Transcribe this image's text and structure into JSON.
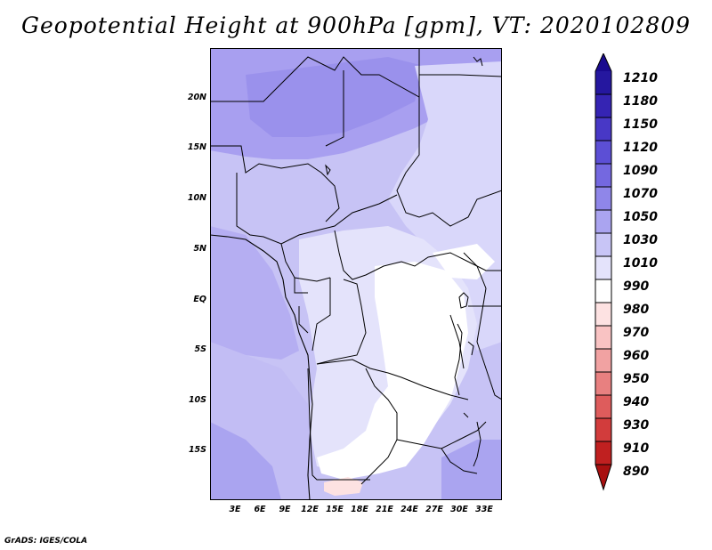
{
  "title": "Geopotential Height at 900hPa [gpm], VT: 2020102809",
  "footer": "GrADS: IGES/COLA",
  "axes": {
    "lat_labels": [
      "20N",
      "15N",
      "10N",
      "5N",
      "EQ",
      "5S",
      "10S",
      "15S"
    ],
    "lon_labels": [
      "3E",
      "6E",
      "9E",
      "12E",
      "15E",
      "18E",
      "21E",
      "24E",
      "27E",
      "30E",
      "33E"
    ]
  },
  "colorbar": {
    "levels": [
      "1210",
      "1180",
      "1150",
      "1120",
      "1090",
      "1070",
      "1050",
      "1030",
      "1010",
      "990",
      "980",
      "970",
      "960",
      "950",
      "940",
      "930",
      "910",
      "890"
    ],
    "colors": [
      "#1a0a8f",
      "#25179f",
      "#3524b3",
      "#4838c6",
      "#5c4fd5",
      "#7468e0",
      "#8f86e9",
      "#aaa4f0",
      "#c8c5f6",
      "#e4e3fb",
      "#ffffff",
      "#fde2e2",
      "#f9c3c3",
      "#f1a2a2",
      "#e88080",
      "#de5c5c",
      "#d23c3c",
      "#c02020",
      "#a81010"
    ]
  }
}
